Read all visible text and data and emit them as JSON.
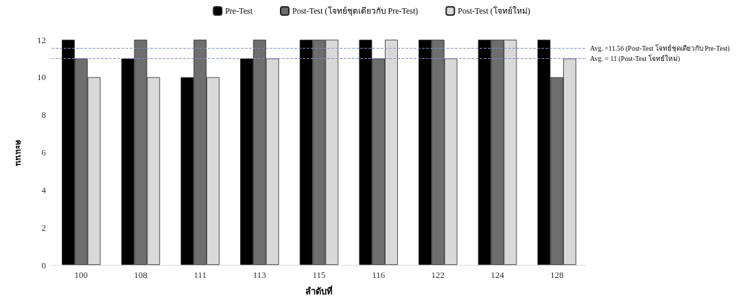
{
  "chart_data": {
    "type": "bar",
    "xlabel": "ลำดับที่",
    "ylabel": "คะแนน",
    "categories": [
      "100",
      "108",
      "111",
      "113",
      "115",
      "116",
      "122",
      "124",
      "128"
    ],
    "series": [
      {
        "name": "Pre-Test",
        "color": "#000000",
        "values": [
          12,
          11,
          10,
          11,
          12,
          12,
          12,
          12,
          12
        ]
      },
      {
        "name": "Post-Test (โจทย์ชุดเดียวกับ Pre-Test)",
        "color": "#6e6e6e",
        "values": [
          11,
          12,
          12,
          12,
          12,
          11,
          12,
          12,
          10
        ]
      },
      {
        "name": "Post-Test (โจทย์ใหม่)",
        "color": "#d9d9d9",
        "values": [
          10,
          10,
          10,
          11,
          12,
          12,
          11,
          12,
          11
        ]
      }
    ],
    "ylim": [
      0,
      12
    ],
    "yticks": [
      0,
      2,
      4,
      6,
      8,
      10,
      12
    ],
    "grid": false,
    "legend": "top",
    "ref_lines": [
      {
        "axis": "y",
        "value": 11.56,
        "label": "Avg. =11.56 (Post-Test โจทย์ชุดเดียวกับ Pre-Test)",
        "color": "#7f8fbf",
        "line_style": "dashed"
      },
      {
        "axis": "y",
        "value": 11,
        "label": "Avg. = 11 (Post-Test โจทย์ใหม่)",
        "color": "#7f8fbf",
        "line_style": "dashed"
      }
    ]
  }
}
